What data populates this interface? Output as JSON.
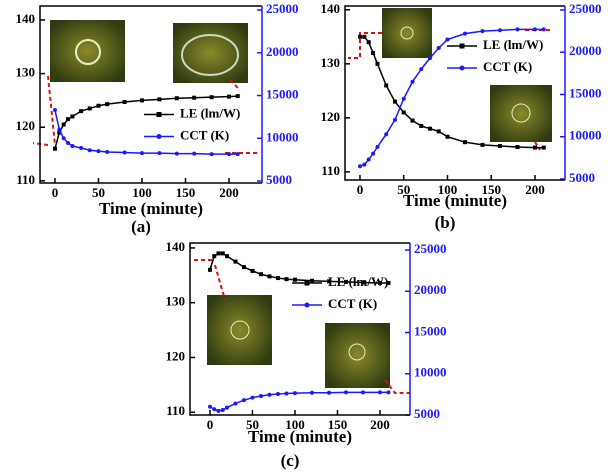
{
  "chart_data": [
    {
      "type": "line",
      "label": "(a)",
      "x_label": "Time (minute)",
      "legend": "center right",
      "x": [
        0,
        5,
        10,
        15,
        20,
        30,
        40,
        50,
        60,
        80,
        100,
        120,
        140,
        160,
        180,
        200,
        210
      ],
      "xlim": [
        -17.2,
        237.9
      ],
      "xticks": [
        0,
        50,
        100,
        150,
        200
      ],
      "ylim": [
        109.6,
        142.6
      ],
      "yticks": [
        110,
        120,
        130,
        140
      ],
      "y2lim": [
        4770,
        25470
      ],
      "y2ticks": [
        5000,
        10000,
        15000,
        20000,
        25000
      ],
      "series": [
        {
          "name": "LE (lm/W)",
          "color": "#000000",
          "values": [
            116,
            119,
            120.5,
            121.5,
            122,
            123,
            123.5,
            124,
            124.3,
            124.7,
            125,
            125.2,
            125.4,
            125.5,
            125.6,
            125.7,
            125.8
          ]
        },
        {
          "name": "CCT (K)",
          "color": "#1a1aff",
          "axis": "y2",
          "values": [
            13300,
            11000,
            10000,
            9450,
            9100,
            8860,
            8600,
            8500,
            8400,
            8330,
            8270,
            8270,
            8200,
            8200,
            8150,
            8150,
            8150
          ]
        }
      ]
    },
    {
      "type": "line",
      "label": "(b)",
      "x_label": "Time (minute)",
      "legend": "upper right",
      "x": [
        0,
        5,
        10,
        15,
        20,
        30,
        40,
        50,
        60,
        70,
        80,
        90,
        100,
        120,
        140,
        160,
        180,
        200,
        210
      ],
      "xlim": [
        -17.1,
        234.3
      ],
      "xticks": [
        0,
        50,
        100,
        150,
        200
      ],
      "ylim": [
        108.5,
        140.7
      ],
      "yticks": [
        110,
        120,
        130,
        140
      ],
      "y2lim": [
        4880,
        25470
      ],
      "y2ticks": [
        5000,
        10000,
        15000,
        20000,
        25000
      ],
      "series": [
        {
          "name": "LE (lm/W)",
          "color": "#000000",
          "values": [
            135,
            135,
            134,
            132,
            130,
            126,
            123,
            121,
            119.5,
            118.5,
            118,
            117.5,
            116.5,
            115.5,
            115,
            114.8,
            114.6,
            114.5,
            114.5
          ]
        },
        {
          "name": "CCT (K)",
          "color": "#1a1aff",
          "axis": "y2",
          "values": [
            6500,
            6700,
            7300,
            8000,
            8800,
            10300,
            12000,
            14500,
            16500,
            18000,
            19300,
            20500,
            21500,
            22200,
            22500,
            22600,
            22700,
            22700,
            22700
          ]
        }
      ]
    },
    {
      "type": "line",
      "label": "(c)",
      "x_label": "Time (minute)",
      "legend": "upper right",
      "x": [
        0,
        5,
        10,
        15,
        20,
        30,
        40,
        50,
        60,
        70,
        80,
        90,
        100,
        120,
        140,
        160,
        180,
        200,
        210
      ],
      "xlim": [
        -23.5,
        235.3
      ],
      "xticks": [
        0,
        50,
        100,
        150,
        200
      ],
      "ylim": [
        109.5,
        140.9
      ],
      "yticks": [
        110,
        120,
        130,
        140
      ],
      "y2lim": [
        5000,
        25850
      ],
      "y2ticks": [
        5000,
        10000,
        15000,
        20000,
        25000
      ],
      "series": [
        {
          "name": "LE (lm/W)",
          "color": "#000000",
          "values": [
            136,
            138.5,
            139,
            139,
            138.5,
            137.5,
            136.5,
            135.8,
            135.2,
            134.8,
            134.5,
            134.3,
            134.2,
            134,
            133.9,
            133.8,
            133.7,
            133.6,
            133.6
          ]
        },
        {
          "name": "CCT (K)",
          "color": "#1a1aff",
          "axis": "y2",
          "values": [
            6000,
            5700,
            5500,
            5600,
            5900,
            6400,
            6800,
            7100,
            7300,
            7450,
            7550,
            7600,
            7650,
            7700,
            7700,
            7750,
            7750,
            7750,
            7750
          ]
        }
      ]
    }
  ]
}
